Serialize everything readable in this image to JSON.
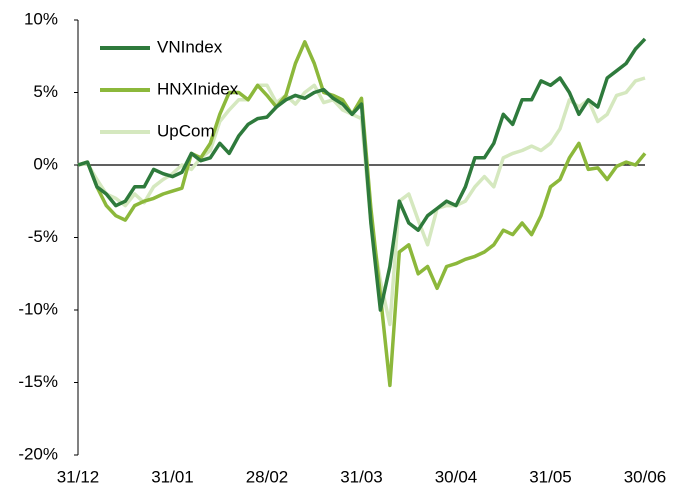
{
  "chart_data": {
    "type": "line",
    "categories": [
      "31/12",
      null,
      null,
      null,
      null,
      null,
      null,
      null,
      null,
      null,
      "31/01",
      null,
      null,
      null,
      null,
      null,
      null,
      null,
      null,
      null,
      "28/02",
      null,
      null,
      null,
      null,
      null,
      null,
      null,
      null,
      null,
      "31/03",
      null,
      null,
      null,
      null,
      null,
      null,
      null,
      null,
      null,
      "30/04",
      null,
      null,
      null,
      null,
      null,
      null,
      null,
      null,
      null,
      "31/05",
      null,
      null,
      null,
      null,
      null,
      null,
      null,
      null,
      null,
      "30/06"
    ],
    "series": [
      {
        "name": "VNIndex",
        "color": "#2e7a3c",
        "values": [
          0,
          0.2,
          -1.5,
          -2.0,
          -2.8,
          -2.5,
          -1.5,
          -1.5,
          -0.3,
          -0.6,
          -0.8,
          -0.5,
          0.8,
          0.3,
          0.5,
          1.5,
          0.8,
          2.0,
          2.8,
          3.2,
          3.3,
          4.0,
          4.5,
          4.8,
          4.6,
          5.0,
          5.2,
          4.6,
          4.2,
          3.5,
          4.2,
          -4,
          -10,
          -7,
          -2.5,
          -4.0,
          -4.5,
          -3.5,
          -3.0,
          -2.5,
          -2.8,
          -1.5,
          0.5,
          0.5,
          1.5,
          3.5,
          2.8,
          4.5,
          4.5,
          5.8,
          5.5,
          6.0,
          5.0,
          3.5,
          4.5,
          4.0,
          6.0,
          6.5,
          7.0,
          8.0,
          8.7
        ]
      },
      {
        "name": "HNXInidex",
        "color": "#8cb83b",
        "values": [
          0,
          0.2,
          -1.5,
          -2.8,
          -3.5,
          -3.8,
          -2.8,
          -2.5,
          -2.3,
          -2.0,
          -1.8,
          -1.6,
          0.8,
          0.5,
          1.5,
          3.5,
          5.0,
          5.0,
          4.5,
          5.5,
          4.8,
          4.0,
          4.8,
          7.0,
          8.5,
          7.0,
          5.0,
          4.8,
          4.5,
          3.5,
          4.6,
          -3,
          -9,
          -15.2,
          -6,
          -5.5,
          -7.5,
          -7,
          -8.5,
          -7,
          -6.8,
          -6.5,
          -6.3,
          -6.0,
          -5.5,
          -4.5,
          -4.8,
          -4.0,
          -4.8,
          -3.5,
          -1.5,
          -1.0,
          0.5,
          1.5,
          -0.3,
          -0.2,
          -1.0,
          -0.1,
          0.2,
          0.0,
          0.8
        ]
      },
      {
        "name": "UpCom",
        "color": "#d5e8bf",
        "values": [
          0,
          0.1,
          -1.0,
          -2.0,
          -2.3,
          -2.8,
          -2.0,
          -2.6,
          -1.5,
          -1.0,
          -0.6,
          0.0,
          -0.3,
          0.5,
          1.0,
          3.0,
          3.8,
          4.5,
          4.5,
          5.5,
          5.5,
          4.3,
          4.8,
          4.2,
          5.0,
          5.5,
          4.3,
          4.5,
          3.8,
          3.5,
          3.2,
          -4,
          -8,
          -11,
          -2.5,
          -2.0,
          -3.8,
          -5.5,
          -3.0,
          -2.8,
          -2.8,
          -2.5,
          -1.5,
          -0.8,
          -1.5,
          0.5,
          0.8,
          1.0,
          1.3,
          1.0,
          1.5,
          2.5,
          4.5,
          4.0,
          4.5,
          3.0,
          3.5,
          4.8,
          5.0,
          5.8,
          6.0
        ]
      }
    ],
    "ylim": [
      -20,
      10
    ],
    "yticks": [
      {
        "value": -20,
        "label": "-20%"
      },
      {
        "value": -15,
        "label": "-15%"
      },
      {
        "value": -10,
        "label": "-10%"
      },
      {
        "value": -5,
        "label": "-5%"
      },
      {
        "value": 0,
        "label": "0%"
      },
      {
        "value": 5,
        "label": "5%"
      },
      {
        "value": 10,
        "label": "10%"
      }
    ],
    "legend": "upper left"
  }
}
